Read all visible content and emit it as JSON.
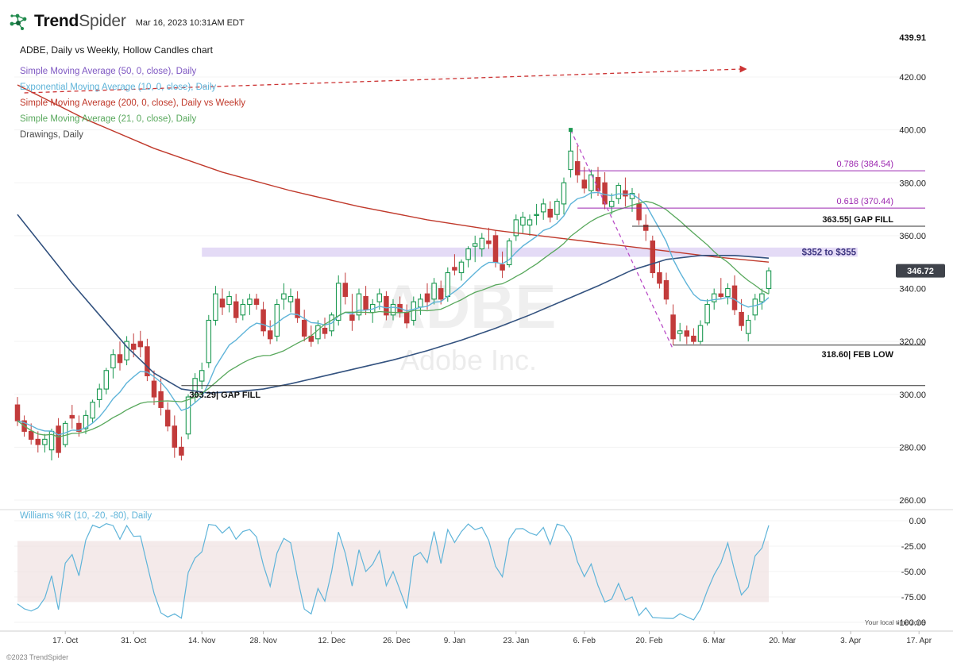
{
  "header": {
    "logo_primary": "Trend",
    "logo_secondary": "Spider",
    "timestamp": "Mar 16, 2023 10:31AM EDT",
    "logo_color": "#1f8a4c"
  },
  "chart_title": "ADBE, Daily vs Weekly, Hollow Candles chart",
  "legend": [
    {
      "label": "Simple Moving Average (50, 0, close), Daily",
      "color": "#7e57c2"
    },
    {
      "label": "Exponential Moving Average (10, 0, close), Daily",
      "color": "#5fb4d9"
    },
    {
      "label": "Simple Moving Average (200, 0, close), Daily vs Weekly",
      "color": "#c0392b"
    },
    {
      "label": "Simple Moving Average (21, 0, close), Daily",
      "color": "#58a85c"
    },
    {
      "label": "Drawings, Daily",
      "color": "#4a4a4a"
    }
  ],
  "watermark": {
    "symbol": "ADBE",
    "company": "Adobe Inc."
  },
  "footer": {
    "copyright": "©2023 TrendSpider",
    "timezone_note": "Your local time zone"
  },
  "chart_data": {
    "type": "candlestick",
    "symbol": "ADBE",
    "company": "Adobe Inc.",
    "timeframe": "Daily vs Weekly",
    "style": "hollow-candles",
    "up_color": "#1a9850",
    "down_color": "#c23b3b",
    "y_axis": {
      "ticks": [
        {
          "label": "420.00",
          "value": 420
        },
        {
          "label": "400.00",
          "value": 400
        },
        {
          "label": "380.00",
          "value": 380
        },
        {
          "label": "360.00",
          "value": 360
        },
        {
          "label": "340.00",
          "value": 340
        },
        {
          "label": "320.00",
          "value": 320
        },
        {
          "label": "300.00",
          "value": 300
        },
        {
          "label": "280.00",
          "value": 280
        },
        {
          "label": "260.00",
          "value": 260
        }
      ],
      "top_label": {
        "label": "439.91",
        "value": 439.91
      },
      "last_price": {
        "label": "346.72",
        "value": 346.72,
        "badge_color": "#3f434b"
      }
    },
    "x_axis": {
      "ticks": [
        {
          "label": "17. Oct",
          "day": 7
        },
        {
          "label": "31. Oct",
          "day": 17
        },
        {
          "label": "14. Nov",
          "day": 27
        },
        {
          "label": "28. Nov",
          "day": 36
        },
        {
          "label": "12. Dec",
          "day": 46
        },
        {
          "label": "26. Dec",
          "day": 55.5
        },
        {
          "label": "9. Jan",
          "day": 64
        },
        {
          "label": "23. Jan",
          "day": 73
        },
        {
          "label": "6. Feb",
          "day": 83
        },
        {
          "label": "20. Feb",
          "day": 92.5
        },
        {
          "label": "6. Mar",
          "day": 102
        },
        {
          "label": "20. Mar",
          "day": 112
        },
        {
          "label": "3. Apr",
          "day": 122
        },
        {
          "label": "17. Apr",
          "day": 132
        }
      ]
    },
    "candles": [
      [
        296,
        299,
        288,
        290
      ],
      [
        290,
        292,
        284,
        286
      ],
      [
        286,
        289,
        281,
        283
      ],
      [
        283,
        286,
        278,
        281
      ],
      [
        281,
        285,
        278,
        283
      ],
      [
        279,
        287,
        275,
        286
      ],
      [
        288,
        291,
        276,
        278
      ],
      [
        281,
        290,
        280,
        289
      ],
      [
        292,
        296,
        287,
        291
      ],
      [
        289,
        292,
        284,
        286
      ],
      [
        287,
        294,
        285,
        292
      ],
      [
        291,
        298,
        289,
        297
      ],
      [
        298,
        304,
        295,
        302
      ],
      [
        302,
        310,
        300,
        309
      ],
      [
        310,
        317,
        306,
        315
      ],
      [
        315,
        320,
        309,
        312
      ],
      [
        313,
        322,
        311,
        320
      ],
      [
        319,
        323,
        314,
        317
      ],
      [
        320,
        324,
        314,
        318
      ],
      [
        318,
        321,
        305,
        307
      ],
      [
        305,
        309,
        296,
        299
      ],
      [
        301,
        306,
        292,
        295
      ],
      [
        294,
        297,
        286,
        288
      ],
      [
        288,
        292,
        276,
        280
      ],
      [
        280,
        284,
        275,
        277
      ],
      [
        285,
        300,
        283,
        299
      ],
      [
        300,
        308,
        297,
        306
      ],
      [
        305,
        312,
        302,
        309
      ],
      [
        312,
        330,
        310,
        328
      ],
      [
        328,
        341,
        326,
        338
      ],
      [
        336,
        340,
        330,
        333
      ],
      [
        334,
        339,
        331,
        337
      ],
      [
        335,
        338,
        327,
        329
      ],
      [
        330,
        336,
        328,
        334
      ],
      [
        334,
        338,
        330,
        336
      ],
      [
        336,
        338,
        332,
        334
      ],
      [
        332,
        335,
        322,
        324
      ],
      [
        324,
        328,
        319,
        321
      ],
      [
        322,
        336,
        320,
        334
      ],
      [
        336,
        342,
        332,
        338
      ],
      [
        335,
        340,
        331,
        337
      ],
      [
        336,
        339,
        327,
        329
      ],
      [
        328,
        332,
        320,
        322
      ],
      [
        322,
        326,
        318,
        320
      ],
      [
        321,
        328,
        319,
        326
      ],
      [
        325,
        329,
        321,
        323
      ],
      [
        324,
        331,
        322,
        330
      ],
      [
        328,
        345,
        326,
        342
      ],
      [
        342,
        346,
        334,
        337
      ],
      [
        330,
        338,
        324,
        328
      ],
      [
        330,
        340,
        328,
        338
      ],
      [
        337,
        341,
        330,
        332
      ],
      [
        331,
        336,
        327,
        334
      ],
      [
        335,
        340,
        332,
        338
      ],
      [
        337,
        339,
        328,
        330
      ],
      [
        330,
        336,
        328,
        334
      ],
      [
        334,
        337,
        329,
        331
      ],
      [
        331,
        334,
        325,
        327
      ],
      [
        328,
        337,
        326,
        335
      ],
      [
        333,
        338,
        330,
        336
      ],
      [
        338,
        342,
        332,
        335
      ],
      [
        336,
        344,
        334,
        342
      ],
      [
        340,
        343,
        334,
        336
      ],
      [
        337,
        348,
        335,
        346
      ],
      [
        348,
        353,
        345,
        347
      ],
      [
        346,
        351,
        343,
        350
      ],
      [
        351,
        356,
        348,
        355
      ],
      [
        356,
        360,
        350,
        357
      ],
      [
        355,
        361,
        352,
        359
      ],
      [
        358,
        363,
        355,
        357
      ],
      [
        360,
        362,
        348,
        350
      ],
      [
        349,
        354,
        344,
        347
      ],
      [
        349,
        359,
        348,
        358
      ],
      [
        360,
        368,
        358,
        366
      ],
      [
        364,
        369,
        361,
        367
      ],
      [
        364,
        368,
        360,
        366
      ],
      [
        368,
        372,
        364,
        368
      ],
      [
        369,
        374,
        366,
        372
      ],
      [
        370,
        373,
        365,
        367
      ],
      [
        368,
        374,
        366,
        373
      ],
      [
        372,
        382,
        368,
        380
      ],
      [
        385,
        400,
        382,
        392
      ],
      [
        388,
        394,
        380,
        383
      ],
      [
        381,
        386,
        376,
        378
      ],
      [
        377,
        385,
        374,
        383
      ],
      [
        382,
        386,
        375,
        377
      ],
      [
        380,
        384,
        370,
        372
      ],
      [
        371,
        376,
        368,
        373
      ],
      [
        374,
        380,
        372,
        379
      ],
      [
        377,
        382,
        371,
        375
      ],
      [
        374,
        378,
        369,
        376
      ],
      [
        372,
        376,
        364,
        366
      ],
      [
        364,
        368,
        358,
        362
      ],
      [
        358,
        360,
        344,
        346
      ],
      [
        346,
        350,
        340,
        342
      ],
      [
        343,
        346,
        334,
        336
      ],
      [
        330,
        334,
        318.6,
        321
      ],
      [
        323,
        327,
        320,
        324
      ],
      [
        324,
        326,
        319,
        322
      ],
      [
        322,
        325,
        319,
        320
      ],
      [
        320,
        328,
        319,
        326
      ],
      [
        327,
        336,
        326,
        334
      ],
      [
        335,
        340,
        332,
        338
      ],
      [
        338,
        344,
        336,
        337
      ],
      [
        337,
        342,
        334,
        340
      ],
      [
        341,
        345,
        330,
        332
      ],
      [
        331,
        336,
        324,
        326
      ],
      [
        323,
        330,
        320,
        328
      ],
      [
        330,
        338,
        328,
        336
      ],
      [
        335,
        340,
        332,
        338
      ],
      [
        340,
        348,
        338,
        346.72
      ]
    ],
    "overlays": [
      {
        "name": "sma-200-weekly",
        "color": "#c0392b",
        "width": 1.4,
        "points": [
          [
            0,
            417
          ],
          [
            10,
            404
          ],
          [
            20,
            393
          ],
          [
            30,
            384
          ],
          [
            40,
            377
          ],
          [
            50,
            371
          ],
          [
            60,
            366
          ],
          [
            70,
            362
          ],
          [
            78,
            359.5
          ],
          [
            86,
            357
          ],
          [
            94,
            354.5
          ],
          [
            102,
            352
          ],
          [
            110,
            350
          ]
        ]
      },
      {
        "name": "sma-50-daily",
        "color": "#33527f",
        "width": 1.6,
        "points": [
          [
            0,
            368
          ],
          [
            4,
            355
          ],
          [
            8,
            342
          ],
          [
            12,
            330
          ],
          [
            16,
            318
          ],
          [
            20,
            308
          ],
          [
            24,
            302
          ],
          [
            28,
            300.5
          ],
          [
            32,
            301
          ],
          [
            36,
            302
          ],
          [
            40,
            304
          ],
          [
            45,
            307
          ],
          [
            50,
            310
          ],
          [
            55,
            313
          ],
          [
            60,
            316.5
          ],
          [
            65,
            320.5
          ],
          [
            70,
            325
          ],
          [
            75,
            330
          ],
          [
            80,
            335.5
          ],
          [
            85,
            341
          ],
          [
            90,
            347
          ],
          [
            95,
            351
          ],
          [
            100,
            352.5
          ],
          [
            105,
            352.5
          ],
          [
            110,
            351.5
          ]
        ]
      },
      {
        "name": "ema-10-daily",
        "color": "#5fb4d9",
        "width": 1.4,
        "computed": "ema",
        "period": 10
      },
      {
        "name": "sma-21-daily",
        "color": "#58a85c",
        "width": 1.3,
        "computed": "sma",
        "period": 21
      }
    ],
    "annotations": {
      "fib_levels": [
        {
          "label": "0.786 (384.54)",
          "value": 384.54,
          "from_day": 82,
          "color": "#9c27b0"
        },
        {
          "label": "0.618 (370.44)",
          "value": 370.44,
          "from_day": 82,
          "color": "#9c27b0"
        }
      ],
      "levels": [
        {
          "label": "363.55| GAP FILL",
          "value": 363.55,
          "from_day": 90,
          "color": "#333333",
          "label_side": "right",
          "label_pos": "above"
        },
        {
          "label": "318.60| FEB LOW",
          "value": 318.6,
          "from_day": 96,
          "color": "#333333",
          "label_side": "right",
          "label_pos": "below"
        },
        {
          "label": "303.29| GAP FILL",
          "value": 303.29,
          "from_day": 24,
          "color": "#333333",
          "label_side": "left",
          "label_pos": "below"
        }
      ],
      "zone": {
        "label": "$352 to $355",
        "from": 352,
        "to": 355.5,
        "from_day": 27,
        "to_day": 123,
        "fill": "#b9a0e8",
        "label_color": "#3d3580"
      },
      "trendlines": [
        {
          "name": "projection-arrow",
          "style": "dashed",
          "color": "#cc3333",
          "from": {
            "day": 1,
            "value": 414
          },
          "to": {
            "day": 106,
            "value": 423
          },
          "arrow": true
        },
        {
          "name": "down-trendline",
          "style": "dashed",
          "color": "#ba4fc8",
          "from": {
            "day": 81,
            "value": 400
          },
          "to": {
            "day": 96,
            "value": 317
          },
          "anchor": true
        }
      ]
    },
    "lower_panel": {
      "type": "williams_r",
      "label": "Williams %R (10, -20, -80), Daily",
      "color": "#5fb4d9",
      "period": 10,
      "band": {
        "from": -20,
        "to": -80,
        "fill": "#ecdcdc"
      },
      "ticks": [
        {
          "label": "0.00",
          "value": 0
        },
        {
          "label": "-25.00",
          "value": -25
        },
        {
          "label": "-50.00",
          "value": -50
        },
        {
          "label": "-75.00",
          "value": -75
        },
        {
          "label": "-100.00",
          "value": -100
        }
      ]
    }
  }
}
